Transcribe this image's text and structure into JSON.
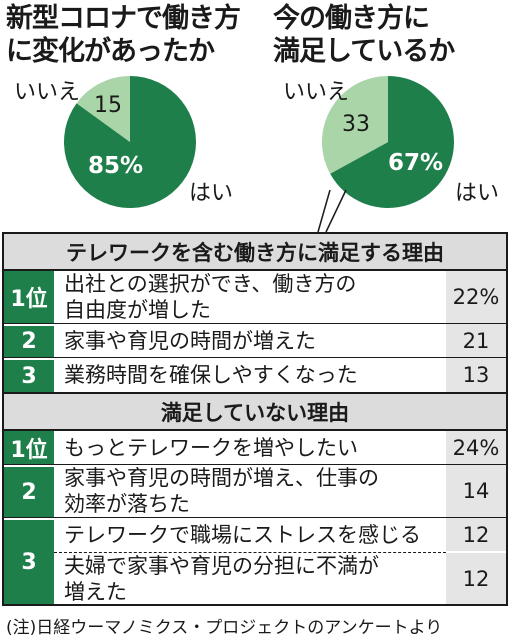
{
  "chart_data": [
    {
      "type": "pie",
      "title": "新型コロナで働き方\nに変化があったか",
      "slices": [
        {
          "label": "はい",
          "value": 85,
          "display": "85%",
          "color": "#1e7f4a"
        },
        {
          "label": "いいえ",
          "value": 15,
          "display": "15",
          "color": "#a9d5a9"
        }
      ]
    },
    {
      "type": "pie",
      "title": "今の働き方に\n満足しているか",
      "slices": [
        {
          "label": "はい",
          "value": 67,
          "display": "67%",
          "color": "#1e7f4a"
        },
        {
          "label": "いいえ",
          "value": 33,
          "display": "33",
          "color": "#a9d5a9"
        }
      ]
    },
    {
      "type": "table",
      "sections": [
        {
          "heading": "テレワークを含む働き方に満足する理由",
          "rows": [
            {
              "rank": "1位",
              "reason": "出社との選択ができ、働き方の\n自由度が増した",
              "value": "22%"
            },
            {
              "rank": "2",
              "reason": "家事や育児の時間が増えた",
              "value": "21"
            },
            {
              "rank": "3",
              "reason": "業務時間を確保しやすくなった",
              "value": "13"
            }
          ]
        },
        {
          "heading": "満足していない理由",
          "rows": [
            {
              "rank": "1位",
              "reason": "もっとテレワークを増やしたい",
              "value": "24%"
            },
            {
              "rank": "2",
              "reason": "家事や育児の時間が増え、仕事の\n効率が落ちた",
              "value": "14"
            },
            {
              "rank": "3",
              "reason": "テレワークで職場にストレスを感じる",
              "value": "12"
            },
            {
              "rank": "3",
              "reason": "夫婦で家事や育児の分担に不満が\n増えた",
              "value": "12"
            }
          ]
        }
      ]
    }
  ],
  "note": "(注)日経ウーマノミクス・プロジェクトのアンケートより"
}
